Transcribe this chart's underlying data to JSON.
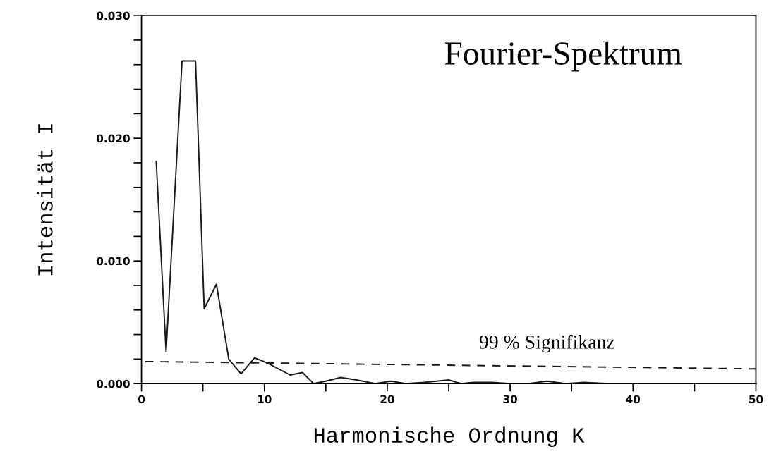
{
  "chart_data": {
    "type": "line",
    "title": "Fourier-Spektrum",
    "xlabel": "Harmonische Ordnung K",
    "ylabel": "Intensität I",
    "series": [
      {
        "color": "#1a1a1a",
        "line_style": "solid",
        "x": [
          1.2,
          2,
          3.3,
          4.4,
          5.1,
          6.1,
          7.1,
          8.1,
          9.2,
          10.2,
          12.1,
          13.1,
          14,
          15,
          16.2,
          17.5,
          19,
          20.3,
          21.5,
          23,
          25,
          26,
          27,
          28.5,
          30,
          31.5,
          33,
          34.5,
          36,
          38,
          40,
          45,
          50
        ],
        "values": [
          0.0181,
          0.0026,
          0.0263,
          0.0263,
          0.0061,
          0.0081,
          0.002,
          0.0008,
          0.0021,
          0.0017,
          0.0007,
          0.0009,
          0.0,
          0.0002,
          0.0005,
          0.0003,
          0.0,
          0.0002,
          0.0,
          0.0001,
          0.0003,
          0.0,
          0.0001,
          0.0001,
          0.0,
          0.0,
          0.0002,
          0.0,
          0.0001,
          0.0,
          0.0,
          0.0,
          0.0
        ]
      },
      {
        "type": "line",
        "color": "#1a1a1a",
        "line_style": "dashed",
        "x": [
          0.3,
          50
        ],
        "values": [
          0.0018,
          0.0012
        ]
      }
    ],
    "annotations": [
      {
        "text": "99 % Signifikanz",
        "x": 33,
        "y": 0.0014
      }
    ],
    "xlim": [
      0,
      50
    ],
    "xticks": [
      0,
      {
        "value": 5,
        "label": null
      },
      10,
      {
        "value": 15,
        "label": null
      },
      20,
      {
        "value": 25,
        "label": null
      },
      30,
      {
        "value": 35,
        "label": null
      },
      40,
      {
        "value": 45,
        "label": null
      },
      50
    ],
    "ylim": [
      0,
      0.03
    ],
    "yticks": [
      {
        "value": 0,
        "label": "0.000"
      },
      {
        "value": 0.002,
        "label": null
      },
      {
        "value": 0.004,
        "label": null
      },
      {
        "value": 0.006,
        "label": null
      },
      {
        "value": 0.008,
        "label": null
      },
      {
        "value": 0.01,
        "label": "0.010"
      },
      {
        "value": 0.012,
        "label": null
      },
      {
        "value": 0.014,
        "label": null
      },
      {
        "value": 0.016,
        "label": null
      },
      {
        "value": 0.018,
        "label": null
      },
      {
        "value": 0.02,
        "label": "0.020"
      },
      {
        "value": 0.022,
        "label": null
      },
      {
        "value": 0.024,
        "label": null
      },
      {
        "value": 0.026,
        "label": null
      },
      {
        "value": 0.028,
        "label": null
      },
      {
        "value": 0.03,
        "label": "0.030"
      }
    ],
    "grid": false,
    "legend": false,
    "marker": "none"
  }
}
